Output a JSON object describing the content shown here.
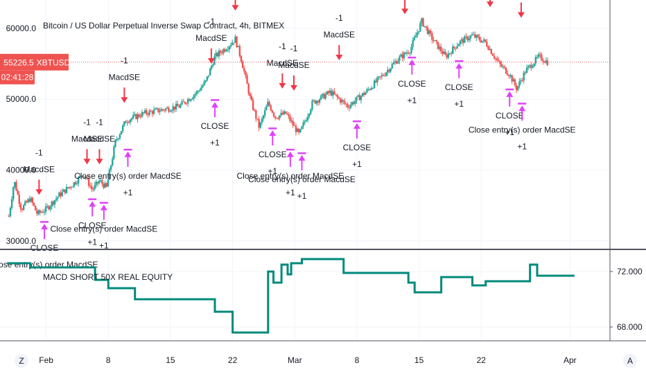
{
  "header": {
    "title": "Bitcoin / US Dollar Perpetual Inverse Swap Contract, 4h, BITMEX",
    "ticker": "XBTUSD",
    "last_price": "55226.5",
    "countdown": "02:41:28"
  },
  "colors": {
    "up": "#26a69a",
    "down": "#ef5350",
    "short_arrow": "#f23645",
    "close_arrow": "#e040fb",
    "equity_line": "#00897b",
    "price_line": "#ef5350",
    "badge_bg": "#ef5350",
    "grid": "#f0f3fa"
  },
  "x_axis": {
    "ticks": [
      {
        "label": "Feb",
        "day": 1
      },
      {
        "label": "8",
        "day": 8
      },
      {
        "label": "15",
        "day": 15
      },
      {
        "label": "22",
        "day": 22
      },
      {
        "label": "Mar",
        "day": 29
      },
      {
        "label": "8",
        "day": 36
      },
      {
        "label": "15",
        "day": 43
      },
      {
        "label": "22",
        "day": 50
      },
      {
        "label": "Apr",
        "day": 60
      }
    ]
  },
  "corner_buttons": {
    "left": "Z",
    "right": "A"
  },
  "chart_data": [
    {
      "type": "candlestick",
      "title": "Bitcoin / US Dollar Perpetual Inverse Swap Contract, 4h, BITMEX",
      "ylim": [
        29000,
        64000
      ],
      "y_ticks": [
        "30000.0",
        "40000.0",
        "50000.0",
        "60000.0"
      ],
      "last_price": 55226.5,
      "price_path": [
        {
          "day": -3.2,
          "price": 33500
        },
        {
          "day": -2.6,
          "price": 38500
        },
        {
          "day": -1.8,
          "price": 34500
        },
        {
          "day": -0.8,
          "price": 36000
        },
        {
          "day": 0.0,
          "price": 33800
        },
        {
          "day": 1.0,
          "price": 34500
        },
        {
          "day": 2.5,
          "price": 36500
        },
        {
          "day": 4.0,
          "price": 38000
        },
        {
          "day": 5.2,
          "price": 39500
        },
        {
          "day": 6.2,
          "price": 37200
        },
        {
          "day": 7.0,
          "price": 38500
        },
        {
          "day": 7.8,
          "price": 37500
        },
        {
          "day": 8.8,
          "price": 44000
        },
        {
          "day": 10.0,
          "price": 47000
        },
        {
          "day": 12.0,
          "price": 48000
        },
        {
          "day": 14.0,
          "price": 48500
        },
        {
          "day": 16.0,
          "price": 49000
        },
        {
          "day": 18.0,
          "price": 51000
        },
        {
          "day": 19.0,
          "price": 52500
        },
        {
          "day": 20.0,
          "price": 56000
        },
        {
          "day": 21.5,
          "price": 57500
        },
        {
          "day": 22.3,
          "price": 58500
        },
        {
          "day": 23.0,
          "price": 55500
        },
        {
          "day": 24.0,
          "price": 50000
        },
        {
          "day": 25.0,
          "price": 46000
        },
        {
          "day": 26.0,
          "price": 49500
        },
        {
          "day": 26.8,
          "price": 47500
        },
        {
          "day": 28.0,
          "price": 48000
        },
        {
          "day": 29.5,
          "price": 45000
        },
        {
          "day": 31.0,
          "price": 49500
        },
        {
          "day": 33.0,
          "price": 51000
        },
        {
          "day": 35.0,
          "price": 49000
        },
        {
          "day": 37.0,
          "price": 51000
        },
        {
          "day": 39.0,
          "price": 53500
        },
        {
          "day": 40.5,
          "price": 55500
        },
        {
          "day": 42.0,
          "price": 57000
        },
        {
          "day": 43.3,
          "price": 61000
        },
        {
          "day": 44.5,
          "price": 58500
        },
        {
          "day": 46.0,
          "price": 56000
        },
        {
          "day": 47.5,
          "price": 58000
        },
        {
          "day": 49.0,
          "price": 59000
        },
        {
          "day": 50.5,
          "price": 58000
        },
        {
          "day": 52.0,
          "price": 55000
        },
        {
          "day": 53.2,
          "price": 53500
        },
        {
          "day": 54.0,
          "price": 51500
        },
        {
          "day": 55.0,
          "price": 54000
        },
        {
          "day": 56.5,
          "price": 56000
        },
        {
          "day": 57.5,
          "price": 55200
        }
      ],
      "signals": [
        {
          "type": "short",
          "day": 0.2,
          "price": 36500,
          "labels": [
            "-1",
            "MacdSE"
          ]
        },
        {
          "type": "close",
          "day": 0.8,
          "price": 32800,
          "labels": [
            "CLOSE",
            "Close entry(s) order MacdSE"
          ]
        },
        {
          "type": "short",
          "day": 5.6,
          "price": 40800,
          "labels": [
            "-1",
            "MacdSE"
          ]
        },
        {
          "type": "close",
          "day": 6.2,
          "price": 36000,
          "labels": [
            "CLOSE",
            "+1"
          ]
        },
        {
          "type": "short",
          "day": 7.0,
          "price": 40800,
          "labels": [
            "-1",
            "MacdSE"
          ]
        },
        {
          "type": "close",
          "day": 7.5,
          "price": 35500,
          "labels": [
            "Close entry(s) order MacdSE",
            "+1"
          ]
        },
        {
          "type": "short",
          "day": 9.8,
          "price": 49500,
          "labels": [
            "-1",
            "MacdSE"
          ]
        },
        {
          "type": "close",
          "day": 10.2,
          "price": 43000,
          "labels": [
            "Close entry(s) order MacdSE",
            "+1"
          ]
        },
        {
          "type": "short",
          "day": 19.6,
          "price": 55000,
          "labels": [
            "-1",
            "MacdSE"
          ]
        },
        {
          "type": "close",
          "day": 20.0,
          "price": 50000,
          "labels": [
            "CLOSE",
            "+1"
          ]
        },
        {
          "type": "short",
          "day": 22.3,
          "price": 62500,
          "labels": [
            "-1",
            "MacdSE"
          ]
        },
        {
          "type": "close",
          "day": 26.5,
          "price": 46000,
          "labels": [
            "CLOSE",
            "+1"
          ]
        },
        {
          "type": "short",
          "day": 27.6,
          "price": 51500,
          "labels": [
            "-1",
            "MacdSE"
          ]
        },
        {
          "type": "close",
          "day": 28.5,
          "price": 43000,
          "labels": [
            "Close entry(s) order MacdSE",
            "+1"
          ]
        },
        {
          "type": "short",
          "day": 28.9,
          "price": 51200,
          "labels": [
            "-1",
            "MacdSE"
          ]
        },
        {
          "type": "close",
          "day": 29.8,
          "price": 42500,
          "labels": [
            "Close entry(s) order MacdSE",
            "+1"
          ]
        },
        {
          "type": "short",
          "day": 34.0,
          "price": 55500,
          "labels": [
            "-1",
            "MacdSE"
          ]
        },
        {
          "type": "close",
          "day": 36.0,
          "price": 47000,
          "labels": [
            "CLOSE",
            "+1"
          ]
        },
        {
          "type": "short",
          "day": 41.4,
          "price": 62000,
          "labels": [
            "-1",
            "MacdSE"
          ]
        },
        {
          "type": "close",
          "day": 42.2,
          "price": 56000,
          "labels": [
            "CLOSE",
            "+1"
          ]
        },
        {
          "type": "short",
          "day": 43.6,
          "price": 65000,
          "labels": [
            "-1",
            "MacdSE"
          ]
        },
        {
          "type": "close",
          "day": 47.5,
          "price": 55500,
          "labels": [
            "CLOSE",
            "+1"
          ]
        },
        {
          "type": "short",
          "day": 51.0,
          "price": 63000,
          "labels": [
            "-1",
            "MacdSE"
          ]
        },
        {
          "type": "close",
          "day": 53.2,
          "price": 51500,
          "labels": [
            "CLOSE",
            "+1"
          ]
        },
        {
          "type": "short",
          "day": 54.5,
          "price": 61500,
          "labels": [
            "-1",
            "MacdSE"
          ]
        },
        {
          "type": "close",
          "day": 54.6,
          "price": 49500,
          "labels": [
            "Close entry(s) order MacdSE",
            "+1"
          ]
        }
      ]
    },
    {
      "type": "line",
      "series": [
        {
          "name": "MACD SHORT 50X REAL EQUITY",
          "points": [
            {
              "day": -3.4,
              "value": 72.6
            },
            {
              "day": -0.8,
              "value": 72.6
            },
            {
              "day": -0.8,
              "value": 72.3
            },
            {
              "day": 6.5,
              "value": 72.3
            },
            {
              "day": 6.5,
              "value": 71.4
            },
            {
              "day": 8.0,
              "value": 71.4
            },
            {
              "day": 8.0,
              "value": 70.8
            },
            {
              "day": 11.0,
              "value": 70.8
            },
            {
              "day": 11.0,
              "value": 70.0
            },
            {
              "day": 20.0,
              "value": 70.0
            },
            {
              "day": 20.0,
              "value": 69.1
            },
            {
              "day": 22.0,
              "value": 69.1
            },
            {
              "day": 22.0,
              "value": 67.6
            },
            {
              "day": 26.0,
              "value": 67.6
            },
            {
              "day": 26.0,
              "value": 72.0
            },
            {
              "day": 26.6,
              "value": 72.0
            },
            {
              "day": 26.6,
              "value": 71.2
            },
            {
              "day": 27.5,
              "value": 71.2
            },
            {
              "day": 27.5,
              "value": 72.5
            },
            {
              "day": 28.2,
              "value": 72.5
            },
            {
              "day": 28.2,
              "value": 71.8
            },
            {
              "day": 28.6,
              "value": 71.8
            },
            {
              "day": 28.6,
              "value": 72.6
            },
            {
              "day": 29.8,
              "value": 72.6
            },
            {
              "day": 29.8,
              "value": 72.9
            },
            {
              "day": 34.5,
              "value": 72.9
            },
            {
              "day": 34.5,
              "value": 71.9
            },
            {
              "day": 41.8,
              "value": 71.9
            },
            {
              "day": 41.8,
              "value": 71.2
            },
            {
              "day": 42.5,
              "value": 71.2
            },
            {
              "day": 42.5,
              "value": 70.5
            },
            {
              "day": 45.5,
              "value": 70.5
            },
            {
              "day": 45.5,
              "value": 71.6
            },
            {
              "day": 49.0,
              "value": 71.6
            },
            {
              "day": 49.0,
              "value": 71.0
            },
            {
              "day": 50.5,
              "value": 71.0
            },
            {
              "day": 50.5,
              "value": 71.3
            },
            {
              "day": 55.5,
              "value": 71.3
            },
            {
              "day": 55.5,
              "value": 72.5
            },
            {
              "day": 56.3,
              "value": 72.5
            },
            {
              "day": 56.3,
              "value": 71.7
            },
            {
              "day": 60.5,
              "value": 71.7
            }
          ]
        }
      ],
      "ylim": [
        67,
        73.5
      ],
      "y_ticks": [
        "72.000",
        "68.000"
      ]
    }
  ]
}
